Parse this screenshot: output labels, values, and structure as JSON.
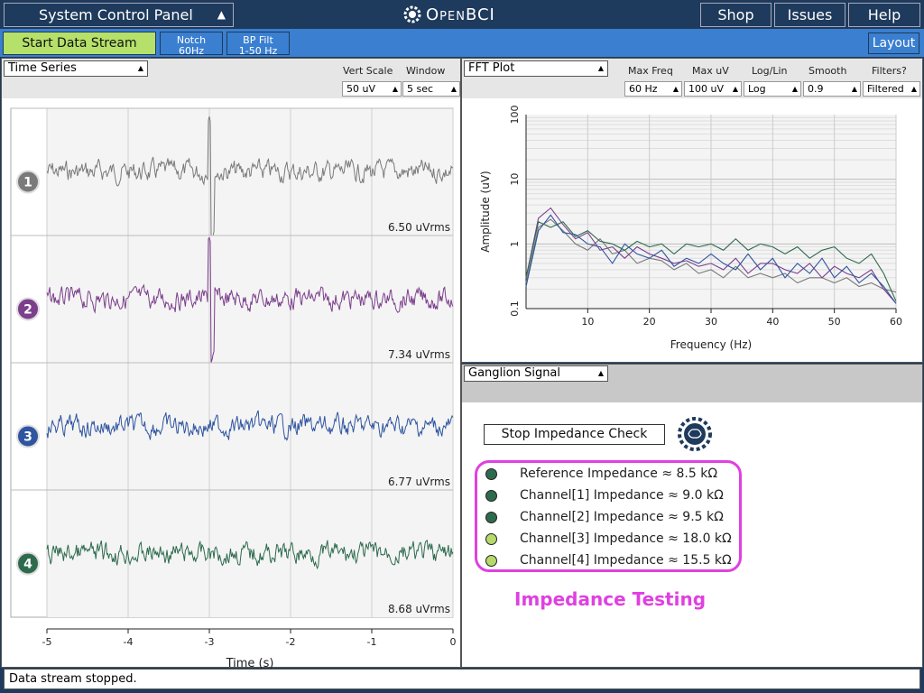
{
  "header": {
    "panel_title": "System Control Panel",
    "brand": "OpenBCI",
    "shop": "Shop",
    "issues": "Issues",
    "help": "Help"
  },
  "toolbar": {
    "start": "Start Data Stream",
    "notch_l1": "Notch",
    "notch_l2": "60Hz",
    "bp_l1": "BP Filt",
    "bp_l2": "1-50 Hz",
    "layout": "Layout"
  },
  "time_series": {
    "title": "Time Series",
    "vert_scale_label": "Vert Scale",
    "vert_scale": "50 uV",
    "window_label": "Window",
    "window": "5 sec",
    "channels": [
      {
        "num": "1",
        "rms": "6.50 uVrms",
        "color": "#7a7a7a",
        "badge": "#7a7a7a"
      },
      {
        "num": "2",
        "rms": "7.34 uVrms",
        "color": "#7b3f8c",
        "badge": "#7b3f8c"
      },
      {
        "num": "3",
        "rms": "6.77 uVrms",
        "color": "#2f55a0",
        "badge": "#2f55a0"
      },
      {
        "num": "4",
        "rms": "8.68 uVrms",
        "color": "#2e6b4e",
        "badge": "#2e6b4e"
      }
    ],
    "x_ticks": [
      "-5",
      "-4",
      "-3",
      "-2",
      "-1",
      "0"
    ],
    "xlabel": "Time (s)"
  },
  "fft": {
    "title": "FFT Plot",
    "maxfreq_label": "Max Freq",
    "maxfreq": "60 Hz",
    "maxuv_label": "Max uV",
    "maxuv": "100 uV",
    "loglin_label": "Log/Lin",
    "loglin": "Log",
    "smooth_label": "Smooth",
    "smooth": "0.9",
    "filters_label": "Filters?",
    "filters": "Filtered",
    "xlabel": "Frequency (Hz)",
    "ylabel": "Amplitude (uV)",
    "y_ticks": [
      "100",
      "10",
      "1",
      "0.1"
    ],
    "x_ticks": [
      "10",
      "20",
      "30",
      "40",
      "50",
      "60"
    ]
  },
  "chart_data": {
    "type": "line",
    "xlabel": "Frequency (Hz)",
    "ylabel": "Amplitude (uV)",
    "xlim": [
      0,
      60
    ],
    "ylim": [
      0.1,
      100
    ],
    "yscale": "log",
    "x": [
      0,
      2,
      4,
      6,
      8,
      10,
      12,
      14,
      16,
      18,
      20,
      22,
      24,
      26,
      28,
      30,
      32,
      34,
      36,
      38,
      40,
      42,
      44,
      46,
      48,
      50,
      52,
      54,
      56,
      58,
      60
    ],
    "series": [
      {
        "color": "#7a7a7a",
        "values": [
          0.25,
          1.8,
          2.4,
          1.6,
          1.0,
          0.8,
          1.2,
          0.7,
          0.8,
          0.5,
          0.6,
          0.55,
          0.4,
          0.5,
          0.35,
          0.4,
          0.3,
          0.45,
          0.3,
          0.35,
          0.3,
          0.35,
          0.25,
          0.3,
          0.3,
          0.25,
          0.3,
          0.22,
          0.25,
          0.2,
          0.18
        ]
      },
      {
        "color": "#7b3f8c",
        "values": [
          0.3,
          2.5,
          3.6,
          2.0,
          1.2,
          1.5,
          0.8,
          0.9,
          0.6,
          0.9,
          0.7,
          0.6,
          0.5,
          0.55,
          0.45,
          0.5,
          0.4,
          0.6,
          0.35,
          0.5,
          0.5,
          0.4,
          0.35,
          0.5,
          0.3,
          0.45,
          0.35,
          0.3,
          0.4,
          0.2,
          0.12
        ]
      },
      {
        "color": "#2f55a0",
        "values": [
          0.22,
          1.6,
          2.8,
          1.5,
          1.4,
          1.0,
          0.9,
          0.5,
          1.0,
          0.7,
          0.6,
          0.8,
          0.45,
          0.6,
          0.5,
          0.7,
          0.5,
          0.4,
          0.7,
          0.4,
          0.6,
          0.3,
          0.5,
          0.35,
          0.6,
          0.3,
          0.45,
          0.25,
          0.35,
          0.22,
          0.12
        ]
      },
      {
        "color": "#2e6b4e",
        "values": [
          0.3,
          2.2,
          1.8,
          2.2,
          1.3,
          1.6,
          1.1,
          1.0,
          0.8,
          1.1,
          0.9,
          1.0,
          0.7,
          1.0,
          0.9,
          1.0,
          0.8,
          1.2,
          0.8,
          1.0,
          0.9,
          0.7,
          0.9,
          0.6,
          0.8,
          0.9,
          0.6,
          0.5,
          0.7,
          0.35,
          0.13
        ]
      }
    ]
  },
  "ganglion": {
    "title": "Ganglion Signal",
    "stop_button": "Stop Impedance Check",
    "rows": [
      {
        "label": "Reference Impedance ≈ 8.5 kΩ",
        "color": "#2e6b4e"
      },
      {
        "label": "Channel[1] Impedance ≈ 9.0 kΩ",
        "color": "#2e6b4e"
      },
      {
        "label": "Channel[2] Impedance ≈ 9.5 kΩ",
        "color": "#2e6b4e"
      },
      {
        "label": "Channel[3] Impedance ≈ 18.0 kΩ",
        "color": "#b5d96a"
      },
      {
        "label": "Channel[4] Impedance ≈ 15.5 kΩ",
        "color": "#b5d96a"
      }
    ],
    "annotation": "Impedance Testing",
    "annotation_color": "#e040e0"
  },
  "status": "Data stream stopped."
}
